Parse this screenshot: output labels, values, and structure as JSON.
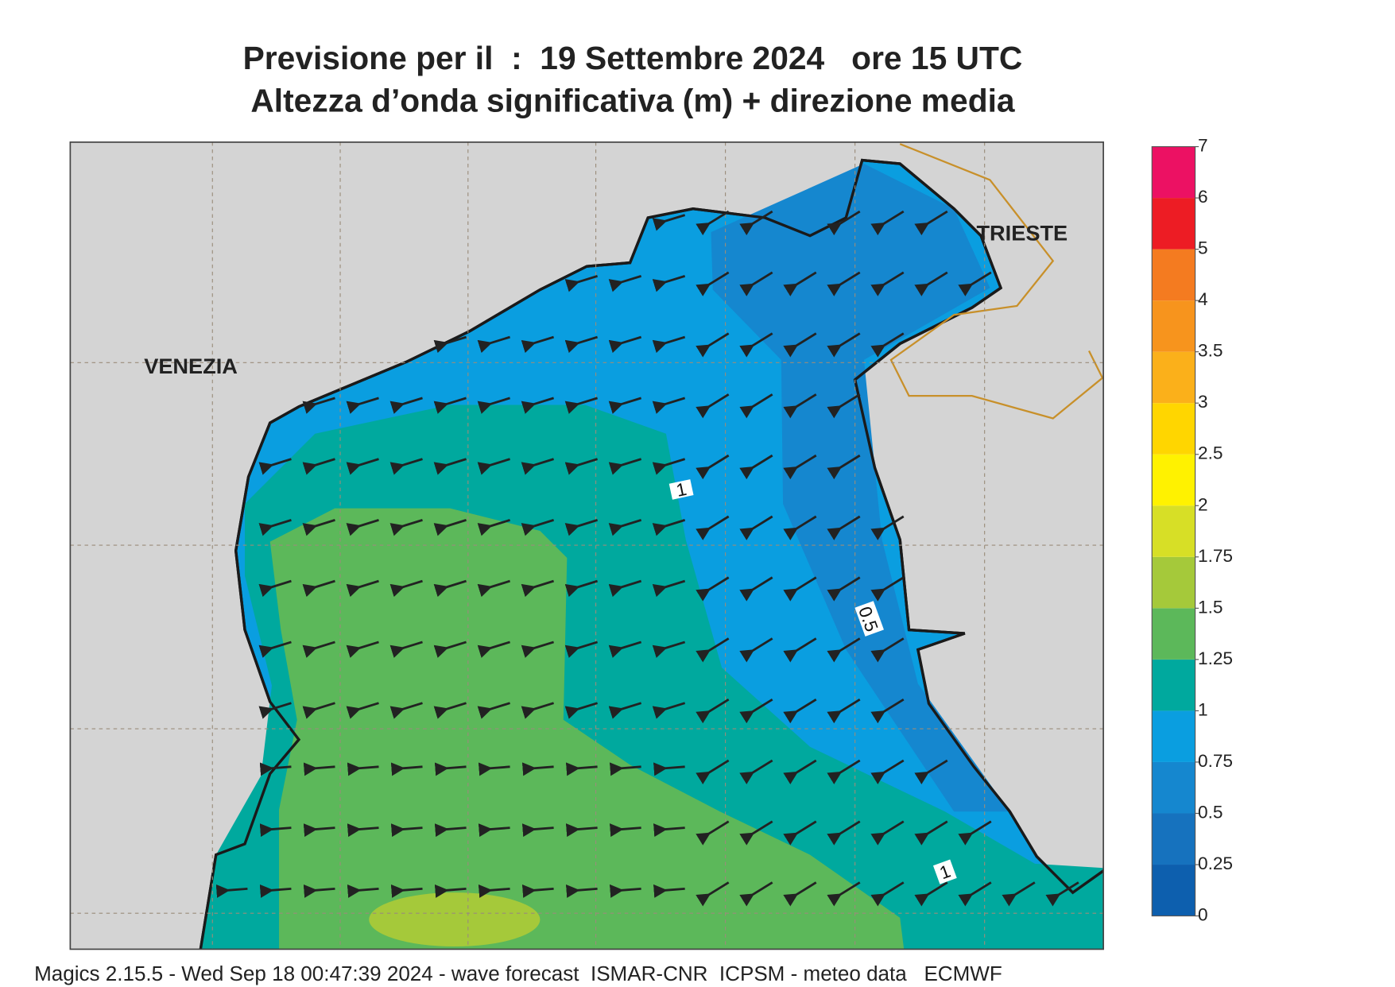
{
  "header": {
    "title": "Previsione per il  :  19 Settembre 2024   ore 15 UTC",
    "subtitle": "Altezza d’onda significativa (m) + direzione media"
  },
  "map": {
    "city_labels": [
      "VENEZIA",
      "TRIESTE"
    ],
    "contour_labels": [
      1,
      0.5,
      1
    ]
  },
  "colorbar": {
    "levels": [
      0,
      0.25,
      0.5,
      0.75,
      1,
      1.25,
      1.5,
      1.75,
      2,
      2.5,
      3,
      3.5,
      4,
      5,
      6,
      7
    ],
    "colors": [
      "#0d5fae",
      "#1672be",
      "#1587cf",
      "#0a9ee0",
      "#00a99e",
      "#5cb85a",
      "#a5c93a",
      "#d7df26",
      "#fff200",
      "#ffd600",
      "#fbb01a",
      "#f7941d",
      "#f47b20",
      "#ed1c24",
      "#ec1163"
    ]
  },
  "footer": "Magics 2.15.5 - Wed Sep 18 00:47:39 2024 - wave forecast  ISMAR-CNR  ICPSM - meteo data   ECMWF"
}
